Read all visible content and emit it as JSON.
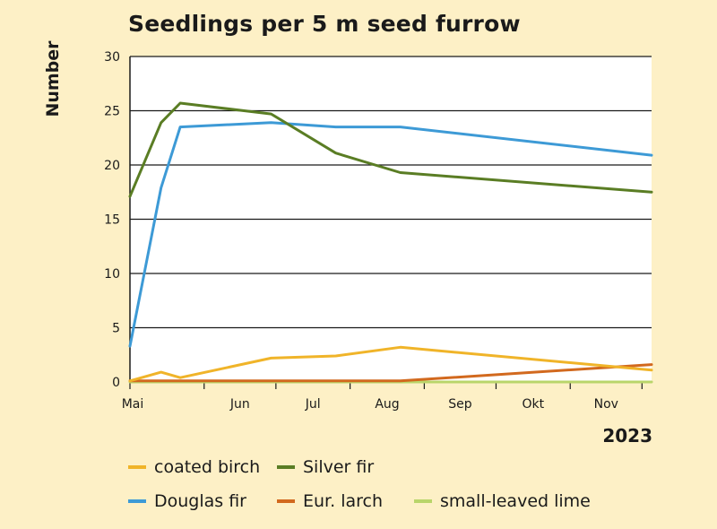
{
  "chart_data": {
    "type": "line",
    "title": "Seedlings per 5 m seed furrow",
    "ylabel": "Number",
    "xlabel": "2023",
    "x_ticks": [
      "Mai",
      "Jun",
      "Jul",
      "Aug",
      "Sep",
      "Okt",
      "Nov"
    ],
    "y_ticks": [
      0,
      5,
      10,
      15,
      20,
      25,
      30
    ],
    "ylim": [
      0,
      30
    ],
    "xlim": [
      "2023-05-01",
      "2023-12-05"
    ],
    "grid": true,
    "legend_position": "bottom",
    "series": [
      {
        "name": "coated birch",
        "color": "#f0b429",
        "points": [
          [
            "2023-05-01",
            0.1
          ],
          [
            "2023-05-14",
            0.9
          ],
          [
            "2023-05-22",
            0.4
          ],
          [
            "2023-06-29",
            2.2
          ],
          [
            "2023-07-26",
            2.4
          ],
          [
            "2023-08-22",
            3.2
          ],
          [
            "2023-12-05",
            1.1
          ]
        ]
      },
      {
        "name": "Silver fir",
        "color": "#5a7d24",
        "points": [
          [
            "2023-05-01",
            17.1
          ],
          [
            "2023-05-14",
            23.9
          ],
          [
            "2023-05-22",
            25.7
          ],
          [
            "2023-06-29",
            24.7
          ],
          [
            "2023-07-26",
            21.1
          ],
          [
            "2023-08-22",
            19.3
          ],
          [
            "2023-12-05",
            17.5
          ]
        ]
      },
      {
        "name": "Douglas fir",
        "color": "#3d9ad6",
        "points": [
          [
            "2023-05-01",
            3.3
          ],
          [
            "2023-05-14",
            17.9
          ],
          [
            "2023-05-22",
            23.5
          ],
          [
            "2023-06-29",
            23.9
          ],
          [
            "2023-07-26",
            23.5
          ],
          [
            "2023-08-22",
            23.5
          ],
          [
            "2023-12-05",
            20.9
          ]
        ]
      },
      {
        "name": "Eur. larch",
        "color": "#d2691e",
        "points": [
          [
            "2023-05-01",
            0.1
          ],
          [
            "2023-08-22",
            0.1
          ],
          [
            "2023-12-05",
            1.6
          ]
        ]
      },
      {
        "name": "small-leaved lime",
        "color": "#b9d56a",
        "points": [
          [
            "2023-05-01",
            0.0
          ],
          [
            "2023-12-05",
            0.0
          ]
        ]
      }
    ]
  }
}
